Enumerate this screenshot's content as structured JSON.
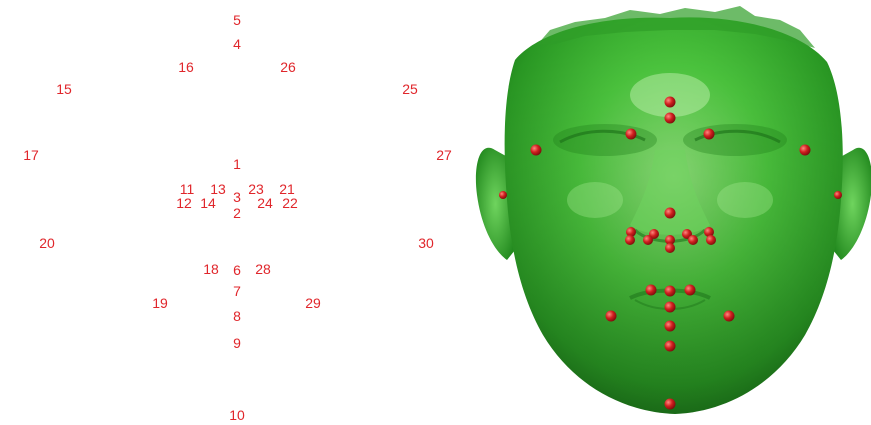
{
  "landmark_labels": [
    "1",
    "2",
    "3",
    "4",
    "5",
    "6",
    "7",
    "8",
    "9",
    "10",
    "11",
    "12",
    "13",
    "14",
    "15",
    "16",
    "17",
    "18",
    "19",
    "20",
    "21",
    "22",
    "23",
    "24",
    "25",
    "26",
    "27",
    "28",
    "29",
    "30"
  ],
  "colors": {
    "label": "#e0262b",
    "face_light": "#8fe27a",
    "face_mid": "#3fbf35",
    "face_dark": "#1f8a1d",
    "marker": "#c41a1a"
  }
}
